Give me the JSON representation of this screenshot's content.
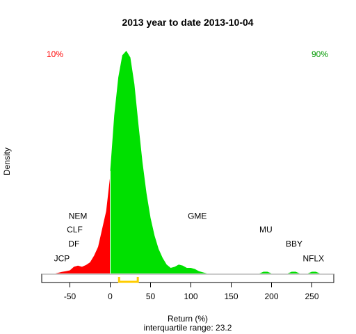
{
  "chart_data": {
    "type": "area",
    "title": "2013  year to date 2013-10-04",
    "xlabel": "Return (%)",
    "ylabel": "Density",
    "subtitle": "interquartile range: 23.2",
    "xlim": [
      -75,
      280
    ],
    "ylim": [
      0,
      1
    ],
    "x_ticks": [
      -50,
      0,
      50,
      100,
      150,
      200,
      250
    ],
    "x_tick_labels": [
      "-50",
      "0",
      "50",
      "100",
      "150",
      "200",
      "250"
    ],
    "y_axis_shown": false,
    "grid": false,
    "split_x": 0,
    "colors": {
      "negative": "#ff0000",
      "positive": "#00e000",
      "quartile_bracket": "#ffcc00",
      "percentile_10": "#ff0000",
      "percentile_90": "#009900"
    },
    "percentile_labels": [
      {
        "text": "10%",
        "side": "left"
      },
      {
        "text": "90%",
        "side": "right"
      }
    ],
    "density": {
      "x": [
        -68,
        -60,
        -55,
        -50,
        -45,
        -40,
        -35,
        -30,
        -25,
        -20,
        -15,
        -10,
        -5,
        0,
        0,
        5,
        10,
        15,
        20,
        25,
        30,
        35,
        40,
        45,
        50,
        55,
        60,
        65,
        70,
        75,
        80,
        85,
        90,
        95,
        100,
        105,
        110,
        115,
        120,
        185,
        190,
        195,
        200,
        220,
        225,
        230,
        235,
        245,
        250,
        255,
        260
      ],
      "y": [
        0,
        0.007,
        0.01,
        0.014,
        0.03,
        0.035,
        0.03,
        0.038,
        0.05,
        0.08,
        0.12,
        0.2,
        0.28,
        0.44,
        0.46,
        0.71,
        0.88,
        0.98,
        1.0,
        0.97,
        0.85,
        0.67,
        0.5,
        0.36,
        0.25,
        0.17,
        0.11,
        0.07,
        0.04,
        0.025,
        0.03,
        0.04,
        0.035,
        0.025,
        0.025,
        0.02,
        0.01,
        0.005,
        0.0,
        0.0,
        0.008,
        0.008,
        0.0,
        0.0,
        0.008,
        0.008,
        0.0,
        0.0,
        0.008,
        0.008,
        0.0
      ]
    },
    "interquartile": {
      "q1": 11,
      "q3": 34.2,
      "range": 23.2
    },
    "annotations": [
      {
        "text": "JCP",
        "x": -60,
        "y": 0.055
      },
      {
        "text": "DF",
        "x": -45,
        "y": 0.12
      },
      {
        "text": "CLF",
        "x": -44,
        "y": 0.185
      },
      {
        "text": "NEM",
        "x": -40,
        "y": 0.245
      },
      {
        "text": "GME",
        "x": 108,
        "y": 0.245
      },
      {
        "text": "MU",
        "x": 193,
        "y": 0.185
      },
      {
        "text": "BBY",
        "x": 228,
        "y": 0.12
      },
      {
        "text": "NFLX",
        "x": 252,
        "y": 0.055
      }
    ]
  }
}
